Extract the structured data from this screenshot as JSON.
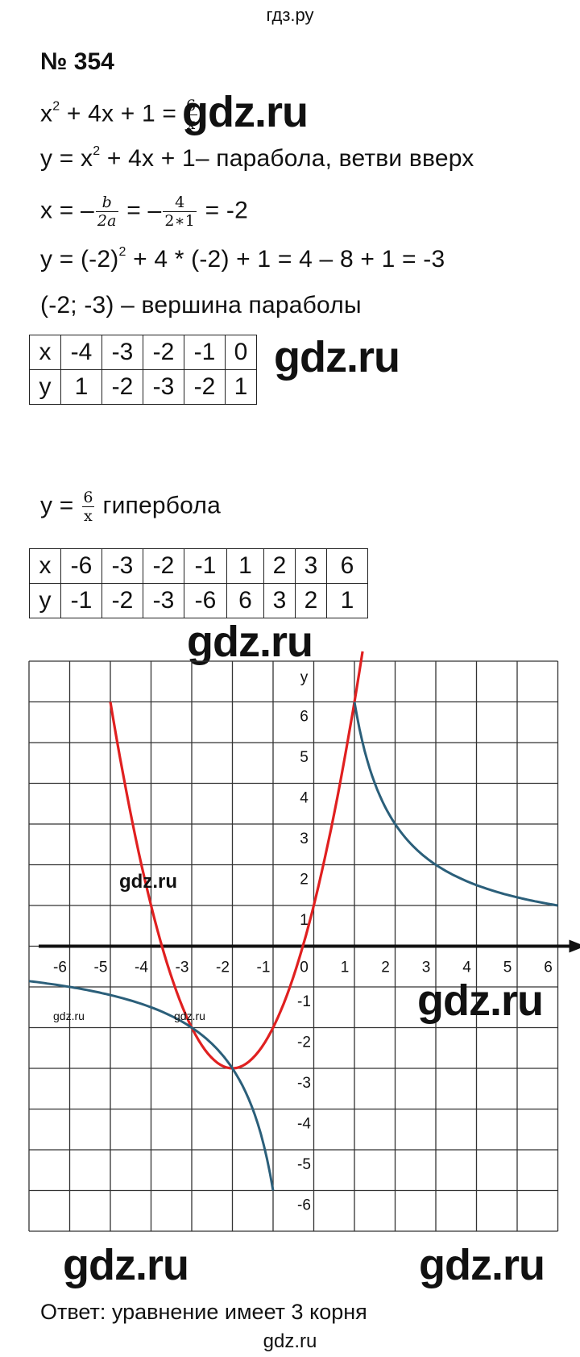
{
  "header": "гдз.ру",
  "problem_number": "№ 354",
  "equation": {
    "lhs": "x",
    "exp": "2",
    "rest": " + 4x + 1 = ",
    "frac_num": "6",
    "frac_den": "x"
  },
  "line_parabola": {
    "pre": "y = x",
    "exp": "2",
    "post": " + 4x + 1– парабола, ветви вверх"
  },
  "line_vertex_x": {
    "pre": "x = –",
    "f1_num": "b",
    "f1_den": "2a",
    "mid": " = –",
    "f2_num": "4",
    "f2_den": "2∗1",
    "post": " = -2"
  },
  "line_vertex_y": {
    "pre": "y = (-2)",
    "exp": "2",
    "post": " + 4 * (-2) + 1 = 4 – 8 + 1 = -3"
  },
  "line_vertex_label": "(-2; -3) – вершина параболы",
  "parabola_table": {
    "x_label": "x",
    "y_label": "y",
    "x": [
      "-4",
      "-3",
      "-2",
      "-1",
      "0"
    ],
    "y": [
      "1",
      "-2",
      "-3",
      "-2",
      "1"
    ]
  },
  "line_hyperbola": {
    "pre": "y = ",
    "frac_num": "6",
    "frac_den": "x",
    "post": " гипербола"
  },
  "hyperbola_table": {
    "x_label": "x",
    "y_label": "y",
    "x": [
      "-6",
      "-3",
      "-2",
      "-1",
      "1",
      "2",
      "3",
      "6"
    ],
    "y": [
      "-1",
      "-2",
      "-3",
      "-6",
      "6",
      "3",
      "2",
      "1"
    ]
  },
  "chart_data": {
    "type": "line",
    "x_ticks": [
      "-6",
      "-5",
      "-4",
      "-3",
      "-2",
      "-1",
      "0",
      "1",
      "2",
      "3",
      "4",
      "5",
      "6"
    ],
    "y_ticks": [
      "6",
      "5",
      "4",
      "3",
      "2",
      "1",
      "-1",
      "-2",
      "-3",
      "-4",
      "-5",
      "-6"
    ],
    "ylabel": "y",
    "xlim": [
      -7,
      6.5
    ],
    "ylim": [
      -7,
      7
    ],
    "grid": true,
    "series": [
      {
        "color": "#e02020",
        "x": [
          -5,
          -4,
          -3,
          -2,
          -1,
          0,
          1.2
        ],
        "y": [
          6,
          1,
          -2,
          -3,
          -2,
          1,
          7.2
        ]
      },
      {
        "color": "#2b5f7a",
        "x": [
          -7,
          -3,
          -2,
          -1
        ],
        "y": [
          -0.86,
          -2,
          -3,
          -6
        ]
      },
      {
        "color": "#2b5f7a",
        "x": [
          1,
          2,
          3,
          6
        ],
        "y": [
          6,
          3,
          2,
          1
        ]
      }
    ]
  },
  "watermark": "gdz.ru",
  "answer": "Ответ: уравнение имеет 3 корня",
  "footer": "gdz.ru"
}
